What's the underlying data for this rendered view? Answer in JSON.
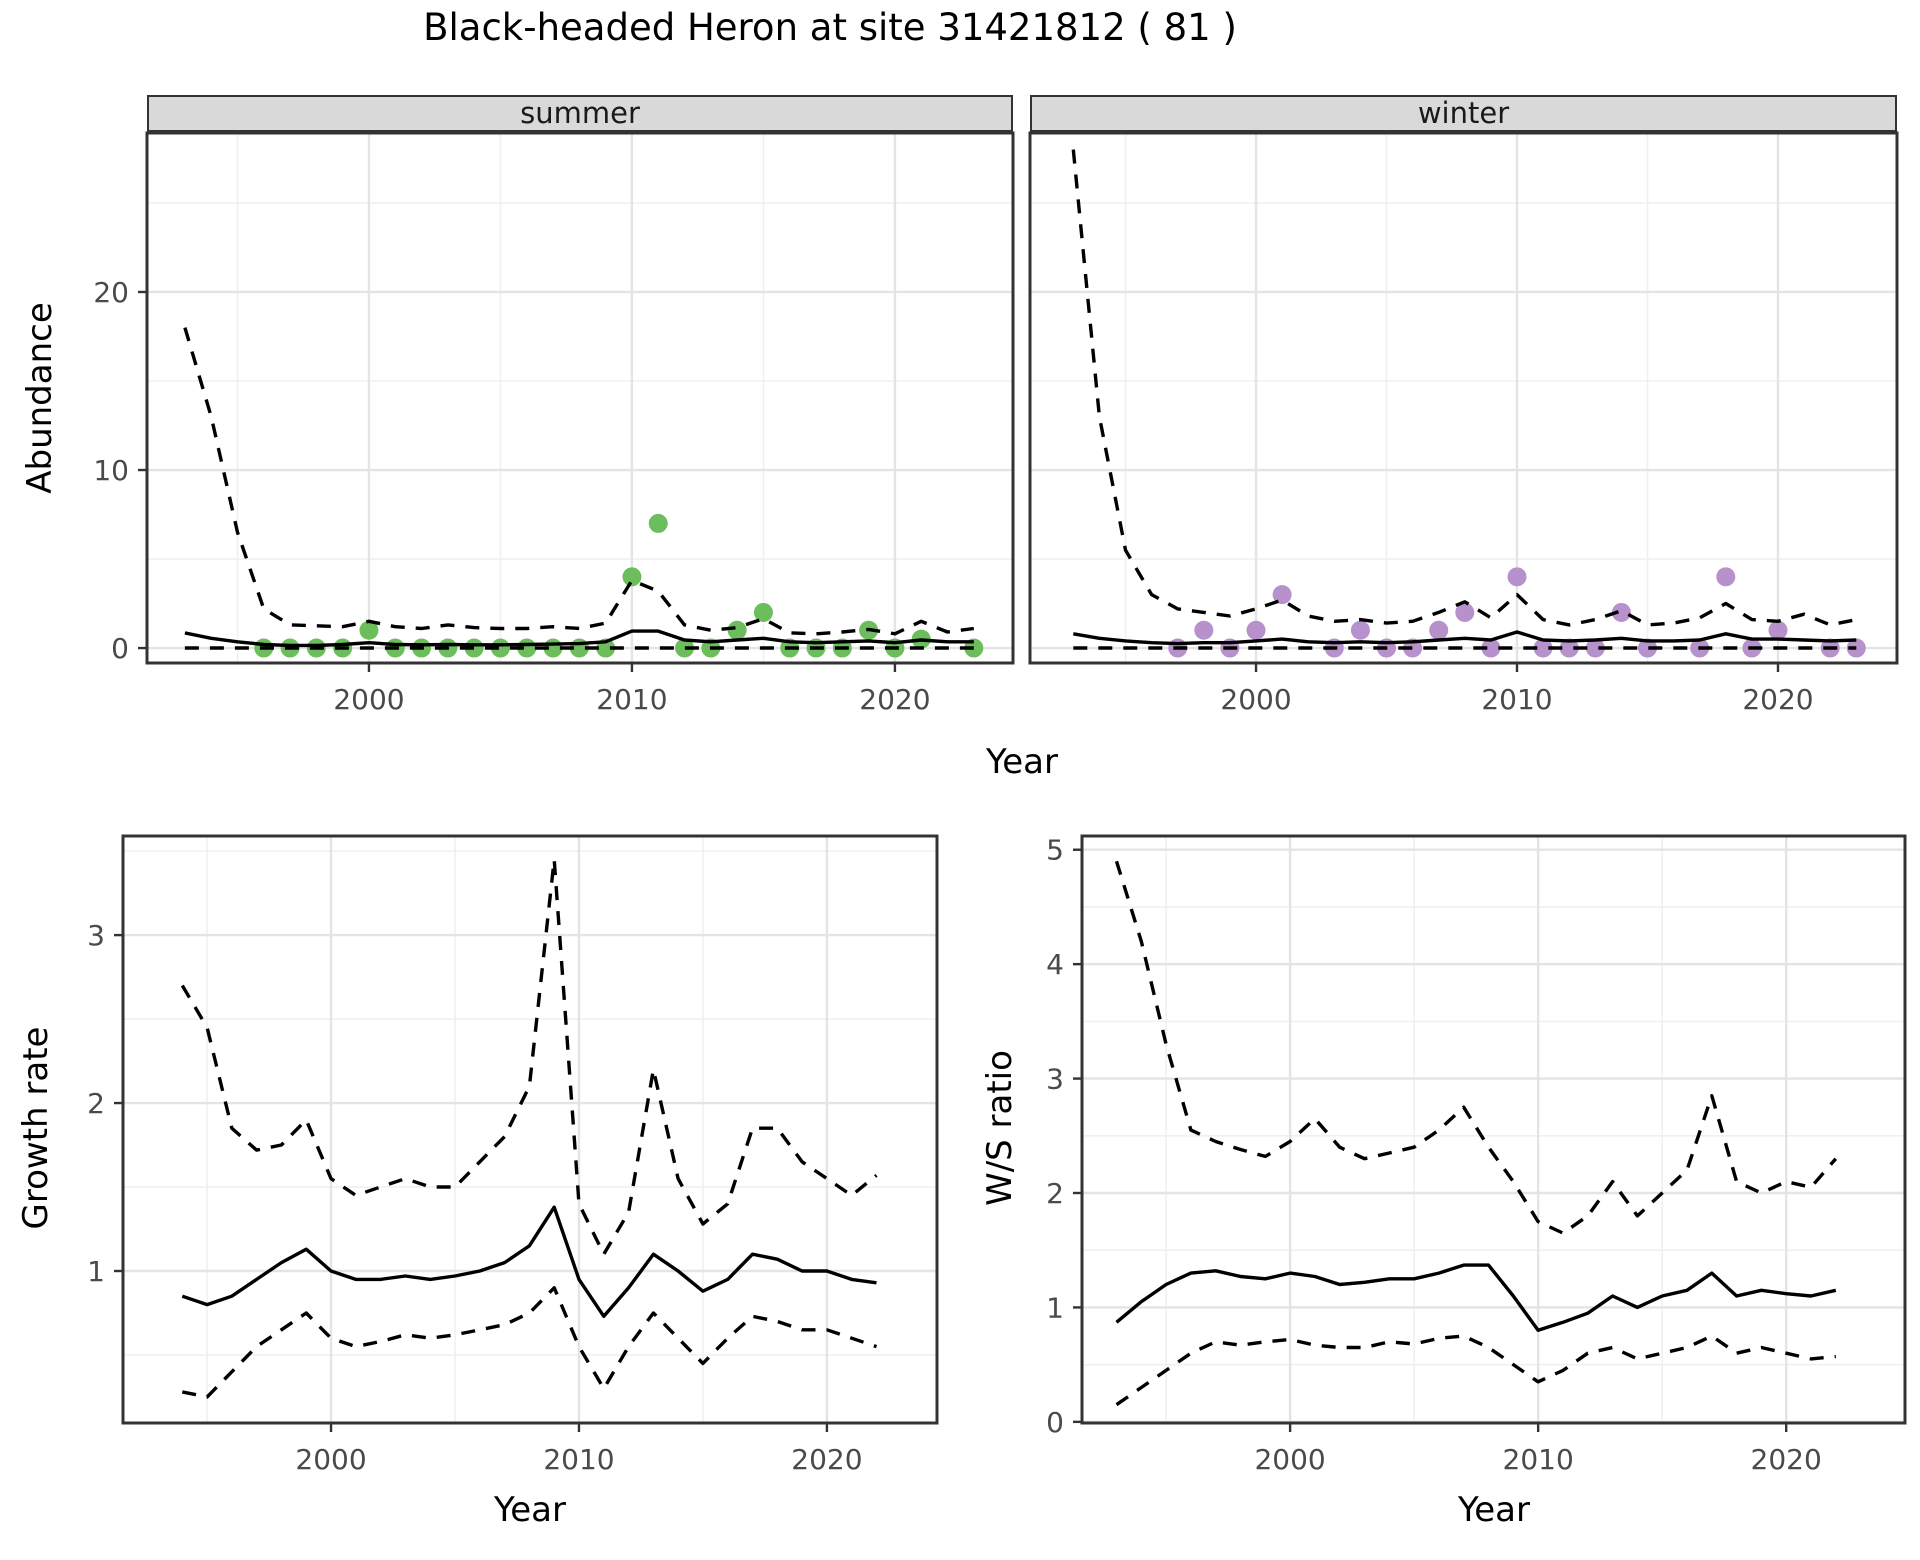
{
  "title": "Black-headed Heron at site 31421812 ( 81 )",
  "colors": {
    "summer_point": "#6CBE5C",
    "winter_point": "#B691CB",
    "fit_line": "#000000",
    "panel_border": "#333333",
    "grid_major": "#e4e4e4",
    "grid_minor": "#f0f0f0",
    "strip_bg": "#d9d9d9",
    "tick_text": "#4a4a4a"
  },
  "shared": {
    "abundance_ylabel": "Abundance",
    "year_xlabel": "Year"
  },
  "chart_data": [
    {
      "id": "abundance-summer",
      "type": "scatter+line",
      "facet_label": "summer",
      "ylabel": "Abundance",
      "xlabel": "Year",
      "xlim": [
        1991.56,
        2024.49
      ],
      "ylim": [
        -0.84,
        28.93
      ],
      "xticks": [
        2000,
        2010,
        2020
      ],
      "yticks": [
        0,
        10,
        20
      ],
      "x_minor": [
        1995,
        2005,
        2015
      ],
      "y_minor": [
        5,
        15,
        25
      ],
      "grid": true,
      "legend": "none",
      "points": {
        "color": "#6CBE5C",
        "years": [
          1996,
          1997,
          1998,
          1999,
          2000,
          2001,
          2002,
          2003,
          2004,
          2005,
          2006,
          2007,
          2008,
          2009,
          2010,
          2011,
          2012,
          2013,
          2014,
          2015,
          2016,
          2017,
          2018,
          2019,
          2020,
          2021,
          2023
        ],
        "values": [
          0,
          0,
          0,
          0,
          1,
          0,
          0,
          0,
          0,
          0,
          0,
          0,
          0,
          0,
          4,
          7,
          0,
          0,
          1,
          2,
          0,
          0,
          0,
          1,
          0,
          0.5,
          0
        ]
      },
      "series": [
        {
          "name": "mean",
          "style": "solid",
          "years": [
            1993,
            1994,
            1995,
            1996,
            1997,
            1998,
            1999,
            2000,
            2001,
            2002,
            2003,
            2004,
            2005,
            2006,
            2007,
            2008,
            2009,
            2010,
            2011,
            2012,
            2013,
            2014,
            2015,
            2016,
            2017,
            2018,
            2019,
            2020,
            2021,
            2022,
            2023
          ],
          "values": [
            0.85,
            0.55,
            0.35,
            0.2,
            0.15,
            0.15,
            0.2,
            0.3,
            0.2,
            0.18,
            0.2,
            0.18,
            0.18,
            0.2,
            0.22,
            0.25,
            0.35,
            0.95,
            0.95,
            0.45,
            0.35,
            0.45,
            0.55,
            0.35,
            0.3,
            0.35,
            0.4,
            0.3,
            0.45,
            0.35,
            0.35
          ]
        },
        {
          "name": "upper_ci",
          "style": "dashed",
          "years": [
            1993,
            1994,
            1995,
            1996,
            1997,
            1998,
            1999,
            2000,
            2001,
            2002,
            2003,
            2004,
            2005,
            2006,
            2007,
            2008,
            2009,
            2010,
            2011,
            2012,
            2013,
            2014,
            2015,
            2016,
            2017,
            2018,
            2019,
            2020,
            2021,
            2022,
            2023
          ],
          "values": [
            18,
            13,
            6.5,
            2.2,
            1.3,
            1.25,
            1.2,
            1.5,
            1.2,
            1.1,
            1.3,
            1.15,
            1.1,
            1.1,
            1.2,
            1.1,
            1.4,
            3.8,
            3.2,
            1.3,
            1.0,
            1.15,
            1.65,
            0.85,
            0.8,
            0.9,
            1.05,
            0.8,
            1.5,
            0.9,
            1.1
          ]
        },
        {
          "name": "lower_ci",
          "style": "dashed",
          "years": [
            1993,
            1994,
            1995,
            1996,
            1997,
            1998,
            1999,
            2000,
            2001,
            2002,
            2003,
            2004,
            2005,
            2006,
            2007,
            2008,
            2009,
            2010,
            2011,
            2012,
            2013,
            2014,
            2015,
            2016,
            2017,
            2018,
            2019,
            2020,
            2021,
            2022,
            2023
          ],
          "values": [
            0,
            0,
            0,
            0,
            0,
            0,
            0,
            0,
            0,
            0,
            0,
            0,
            0,
            0,
            0,
            0,
            0,
            0,
            0,
            0,
            0,
            0,
            0,
            0,
            0,
            0,
            0,
            0,
            0,
            0,
            0
          ]
        }
      ]
    },
    {
      "id": "abundance-winter",
      "type": "scatter+line",
      "facet_label": "winter",
      "ylabel": "Abundance",
      "xlabel": "Year",
      "xlim": [
        1991.34,
        2024.56
      ],
      "ylim": [
        -0.84,
        28.93
      ],
      "xticks": [
        2000,
        2010,
        2020
      ],
      "yticks": [
        0,
        10,
        20
      ],
      "x_minor": [
        1995,
        2005,
        2015
      ],
      "y_minor": [
        5,
        15,
        25
      ],
      "grid": true,
      "legend": "none",
      "points": {
        "color": "#B691CB",
        "years": [
          1997,
          1998,
          1999,
          2000,
          2001,
          2003,
          2004,
          2005,
          2006,
          2007,
          2008,
          2009,
          2010,
          2011,
          2012,
          2013,
          2014,
          2015,
          2017,
          2018,
          2019,
          2020,
          2022,
          2023
        ],
        "values": [
          0,
          1,
          0,
          1,
          3,
          0,
          1,
          0,
          0,
          1,
          2,
          0,
          4,
          0,
          0,
          0,
          2,
          0,
          0,
          4,
          0,
          1,
          0,
          0
        ]
      },
      "series": [
        {
          "name": "mean",
          "style": "solid",
          "years": [
            1993,
            1994,
            1995,
            1996,
            1997,
            1998,
            1999,
            2000,
            2001,
            2002,
            2003,
            2004,
            2005,
            2006,
            2007,
            2008,
            2009,
            2010,
            2011,
            2012,
            2013,
            2014,
            2015,
            2016,
            2017,
            2018,
            2019,
            2020,
            2021,
            2022,
            2023
          ],
          "values": [
            0.8,
            0.55,
            0.4,
            0.3,
            0.25,
            0.3,
            0.3,
            0.4,
            0.5,
            0.35,
            0.3,
            0.35,
            0.3,
            0.35,
            0.45,
            0.55,
            0.45,
            0.9,
            0.45,
            0.4,
            0.45,
            0.55,
            0.4,
            0.4,
            0.45,
            0.8,
            0.5,
            0.5,
            0.45,
            0.4,
            0.45
          ]
        },
        {
          "name": "upper_ci",
          "style": "dashed",
          "years": [
            1993,
            1994,
            1995,
            1996,
            1997,
            1998,
            1999,
            2000,
            2001,
            2002,
            2003,
            2004,
            2005,
            2006,
            2007,
            2008,
            2009,
            2010,
            2011,
            2012,
            2013,
            2014,
            2015,
            2016,
            2017,
            2018,
            2019,
            2020,
            2021,
            2022,
            2023
          ],
          "values": [
            28,
            13,
            5.5,
            3.0,
            2.2,
            2.0,
            1.8,
            2.2,
            2.7,
            1.8,
            1.5,
            1.6,
            1.4,
            1.5,
            2.0,
            2.6,
            1.7,
            3.0,
            1.6,
            1.3,
            1.6,
            2.1,
            1.3,
            1.4,
            1.7,
            2.5,
            1.6,
            1.5,
            1.9,
            1.3,
            1.6
          ]
        },
        {
          "name": "lower_ci",
          "style": "dashed",
          "years": [
            1993,
            1994,
            1995,
            1996,
            1997,
            1998,
            1999,
            2000,
            2001,
            2002,
            2003,
            2004,
            2005,
            2006,
            2007,
            2008,
            2009,
            2010,
            2011,
            2012,
            2013,
            2014,
            2015,
            2016,
            2017,
            2018,
            2019,
            2020,
            2021,
            2022,
            2023
          ],
          "values": [
            0,
            0,
            0,
            0,
            0,
            0,
            0,
            0,
            0,
            0,
            0,
            0,
            0,
            0,
            0,
            0,
            0,
            0,
            0,
            0,
            0,
            0,
            0,
            0,
            0,
            0,
            0,
            0,
            0,
            0,
            0
          ]
        }
      ]
    },
    {
      "id": "growth-rate",
      "type": "line",
      "ylabel": "Growth rate",
      "xlabel": "Year",
      "xlim": [
        1991.61,
        2024.44
      ],
      "ylim": [
        0.095,
        3.59
      ],
      "xticks": [
        2000,
        2010,
        2020
      ],
      "yticks": [
        1,
        2,
        3
      ],
      "x_minor": [
        1995,
        2005,
        2015
      ],
      "y_minor": [
        0.5,
        1.5,
        2.5,
        3.5
      ],
      "grid": true,
      "legend": "none",
      "series": [
        {
          "name": "mean",
          "style": "solid",
          "years": [
            1994,
            1995,
            1996,
            1997,
            1998,
            1999,
            2000,
            2001,
            2002,
            2003,
            2004,
            2005,
            2006,
            2007,
            2008,
            2009,
            2010,
            2011,
            2012,
            2013,
            2014,
            2015,
            2016,
            2017,
            2018,
            2019,
            2020,
            2021,
            2022
          ],
          "values": [
            0.85,
            0.8,
            0.85,
            0.95,
            1.05,
            1.13,
            1.0,
            0.95,
            0.95,
            0.97,
            0.95,
            0.97,
            1.0,
            1.05,
            1.15,
            1.38,
            0.95,
            0.73,
            0.9,
            1.1,
            1.0,
            0.88,
            0.95,
            1.1,
            1.07,
            1.0,
            1.0,
            0.95,
            0.93
          ]
        },
        {
          "name": "upper_ci",
          "style": "dashed",
          "years": [
            1994,
            1995,
            1996,
            1997,
            1998,
            1999,
            2000,
            2001,
            2002,
            2003,
            2004,
            2005,
            2006,
            2007,
            2008,
            2009,
            2010,
            2011,
            2012,
            2013,
            2014,
            2015,
            2016,
            2017,
            2018,
            2019,
            2020,
            2021,
            2022
          ],
          "values": [
            2.7,
            2.45,
            1.85,
            1.72,
            1.75,
            1.9,
            1.55,
            1.45,
            1.5,
            1.55,
            1.5,
            1.5,
            1.65,
            1.8,
            2.1,
            3.45,
            1.4,
            1.1,
            1.35,
            2.2,
            1.55,
            1.28,
            1.4,
            1.85,
            1.85,
            1.65,
            1.55,
            1.45,
            1.57
          ]
        },
        {
          "name": "lower_ci",
          "style": "dashed",
          "years": [
            1994,
            1995,
            1996,
            1997,
            1998,
            1999,
            2000,
            2001,
            2002,
            2003,
            2004,
            2005,
            2006,
            2007,
            2008,
            2009,
            2010,
            2011,
            2012,
            2013,
            2014,
            2015,
            2016,
            2017,
            2018,
            2019,
            2020,
            2021,
            2022
          ],
          "values": [
            0.28,
            0.25,
            0.4,
            0.55,
            0.65,
            0.75,
            0.6,
            0.55,
            0.58,
            0.62,
            0.6,
            0.62,
            0.65,
            0.68,
            0.75,
            0.9,
            0.55,
            0.3,
            0.55,
            0.75,
            0.6,
            0.45,
            0.6,
            0.73,
            0.7,
            0.65,
            0.65,
            0.6,
            0.55
          ]
        }
      ]
    },
    {
      "id": "ws-ratio",
      "type": "line",
      "ylabel": "W/S ratio",
      "xlabel": "Year",
      "xlim": [
        1991.61,
        2024.79
      ],
      "ylim": [
        -0.01,
        5.12
      ],
      "xticks": [
        2000,
        2010,
        2020
      ],
      "yticks": [
        0,
        1,
        2,
        3,
        4,
        5
      ],
      "x_minor": [
        1995,
        2005,
        2015
      ],
      "y_minor": [
        0.5,
        1.5,
        2.5,
        3.5,
        4.5
      ],
      "grid": true,
      "legend": "none",
      "series": [
        {
          "name": "mean",
          "style": "solid",
          "years": [
            1993,
            1994,
            1995,
            1996,
            1997,
            1998,
            1999,
            2000,
            2001,
            2002,
            2003,
            2004,
            2005,
            2006,
            2007,
            2008,
            2009,
            2010,
            2011,
            2012,
            2013,
            2014,
            2015,
            2016,
            2017,
            2018,
            2019,
            2020,
            2021,
            2022
          ],
          "values": [
            0.87,
            1.05,
            1.2,
            1.3,
            1.32,
            1.27,
            1.25,
            1.3,
            1.27,
            1.2,
            1.22,
            1.25,
            1.25,
            1.3,
            1.37,
            1.37,
            1.1,
            0.8,
            0.87,
            0.95,
            1.1,
            1.0,
            1.1,
            1.15,
            1.3,
            1.1,
            1.15,
            1.12,
            1.1,
            1.15
          ]
        },
        {
          "name": "upper_ci",
          "style": "dashed",
          "years": [
            1993,
            1994,
            1995,
            1996,
            1997,
            1998,
            1999,
            2000,
            2001,
            2002,
            2003,
            2004,
            2005,
            2006,
            2007,
            2008,
            2009,
            2010,
            2011,
            2012,
            2013,
            2014,
            2015,
            2016,
            2017,
            2018,
            2019,
            2020,
            2021,
            2022
          ],
          "values": [
            4.9,
            4.2,
            3.3,
            2.55,
            2.45,
            2.38,
            2.32,
            2.45,
            2.65,
            2.4,
            2.3,
            2.35,
            2.4,
            2.55,
            2.75,
            2.4,
            2.1,
            1.75,
            1.65,
            1.8,
            2.1,
            1.8,
            2.0,
            2.2,
            2.85,
            2.1,
            2.0,
            2.1,
            2.05,
            2.3
          ]
        },
        {
          "name": "lower_ci",
          "style": "dashed",
          "years": [
            1993,
            1994,
            1995,
            1996,
            1997,
            1998,
            1999,
            2000,
            2001,
            2002,
            2003,
            2004,
            2005,
            2006,
            2007,
            2008,
            2009,
            2010,
            2011,
            2012,
            2013,
            2014,
            2015,
            2016,
            2017,
            2018,
            2019,
            2020,
            2021,
            2022
          ],
          "values": [
            0.15,
            0.3,
            0.45,
            0.6,
            0.7,
            0.67,
            0.7,
            0.72,
            0.67,
            0.65,
            0.65,
            0.7,
            0.68,
            0.73,
            0.75,
            0.65,
            0.5,
            0.35,
            0.45,
            0.6,
            0.65,
            0.55,
            0.6,
            0.65,
            0.75,
            0.6,
            0.65,
            0.6,
            0.55,
            0.57
          ]
        }
      ]
    }
  ]
}
